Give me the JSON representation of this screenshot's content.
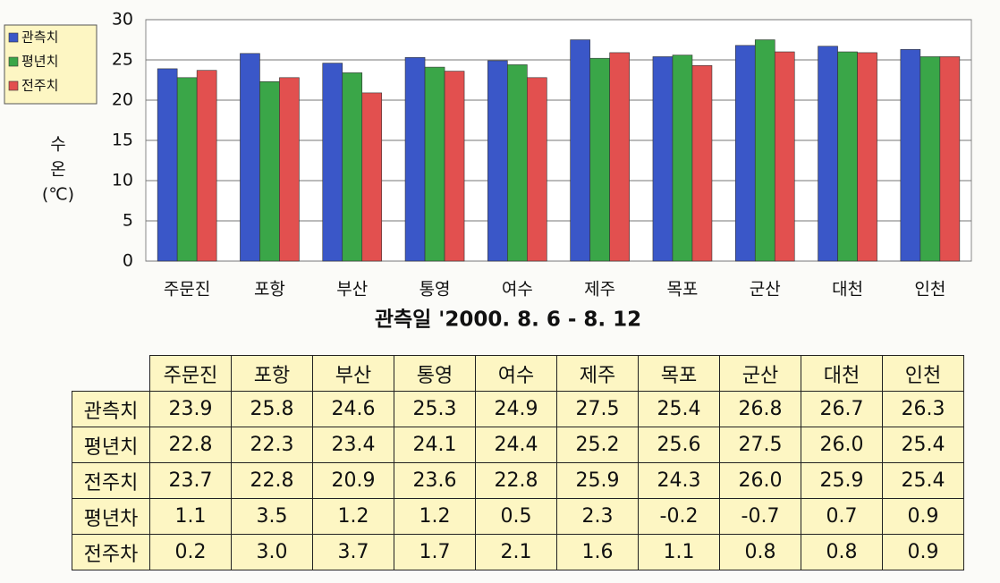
{
  "chart_data": {
    "type": "bar",
    "categories": [
      "주문진",
      "포항",
      "부산",
      "통영",
      "여수",
      "제주",
      "목포",
      "군산",
      "대천",
      "인천"
    ],
    "series": [
      {
        "name": "관측치",
        "color": "#3a57c8",
        "values": [
          23.9,
          25.8,
          24.6,
          25.3,
          24.9,
          27.5,
          25.4,
          26.8,
          26.7,
          26.3
        ]
      },
      {
        "name": "평년치",
        "color": "#3aa648",
        "values": [
          22.8,
          22.3,
          23.4,
          24.1,
          24.4,
          25.2,
          25.6,
          27.5,
          26.0,
          25.4
        ]
      },
      {
        "name": "전주치",
        "color": "#e2504f",
        "values": [
          23.7,
          22.8,
          20.9,
          23.6,
          22.8,
          25.9,
          24.3,
          26.0,
          25.9,
          25.4
        ]
      }
    ],
    "ylabel": [
      "수",
      "온",
      "(℃)"
    ],
    "xlabel": "관측일 '2000.  8. 6  -  8. 12",
    "ylim": [
      0,
      30
    ],
    "yticks": [
      0,
      5,
      10,
      15,
      20,
      25,
      30
    ],
    "grid": true,
    "legend": "left"
  },
  "table": {
    "header": [
      "주문진",
      "포항",
      "부산",
      "통영",
      "여수",
      "제주",
      "목포",
      "군산",
      "대천",
      "인천"
    ],
    "rows": [
      {
        "label": "관측치",
        "cells": [
          "23.9",
          "25.8",
          "24.6",
          "25.3",
          "24.9",
          "27.5",
          "25.4",
          "26.8",
          "26.7",
          "26.3"
        ]
      },
      {
        "label": "평년치",
        "cells": [
          "22.8",
          "22.3",
          "23.4",
          "24.1",
          "24.4",
          "25.2",
          "25.6",
          "27.5",
          "26.0",
          "25.4"
        ]
      },
      {
        "label": "전주치",
        "cells": [
          "23.7",
          "22.8",
          "20.9",
          "23.6",
          "22.8",
          "25.9",
          "24.3",
          "26.0",
          "25.9",
          "25.4"
        ]
      },
      {
        "label": "평년차",
        "cells": [
          "1.1",
          "3.5",
          "1.2",
          "1.2",
          "0.5",
          "2.3",
          "-0.2",
          "-0.7",
          "0.7",
          "0.9"
        ]
      },
      {
        "label": "전주차",
        "cells": [
          "0.2",
          "3.0",
          "3.7",
          "1.7",
          "2.1",
          "1.6",
          "1.1",
          "0.8",
          "0.8",
          "0.9"
        ]
      }
    ]
  }
}
